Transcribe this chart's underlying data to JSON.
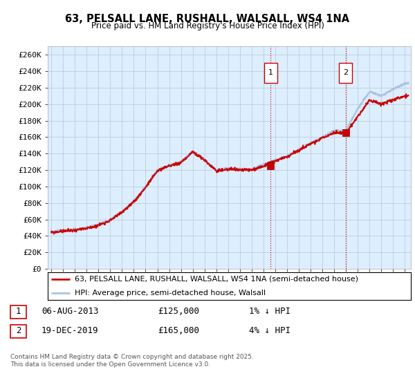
{
  "title": "63, PELSALL LANE, RUSHALL, WALSALL, WS4 1NA",
  "subtitle": "Price paid vs. HM Land Registry's House Price Index (HPI)",
  "ylim": [
    0,
    270000
  ],
  "yticks": [
    0,
    20000,
    40000,
    60000,
    80000,
    100000,
    120000,
    140000,
    160000,
    180000,
    200000,
    220000,
    240000,
    260000
  ],
  "ytick_labels": [
    "£0",
    "£20K",
    "£40K",
    "£60K",
    "£80K",
    "£100K",
    "£120K",
    "£140K",
    "£160K",
    "£180K",
    "£200K",
    "£220K",
    "£240K",
    "£260K"
  ],
  "hpi_color": "#aac4e0",
  "price_color": "#cc0000",
  "bg_color": "#ddeeff",
  "grid_color": "#bbccdd",
  "legend_label_price": "63, PELSALL LANE, RUSHALL, WALSALL, WS4 1NA (semi-detached house)",
  "legend_label_hpi": "HPI: Average price, semi-detached house, Walsall",
  "transaction1_label": "1",
  "transaction1_date": "06-AUG-2013",
  "transaction1_price": "£125,000",
  "transaction1_hpi": "1% ↓ HPI",
  "transaction2_label": "2",
  "transaction2_date": "19-DEC-2019",
  "transaction2_price": "£165,000",
  "transaction2_hpi": "4% ↓ HPI",
  "footer": "Contains HM Land Registry data © Crown copyright and database right 2025.\nThis data is licensed under the Open Government Licence v3.0.",
  "transaction1_x": 2013.6,
  "transaction1_y": 125000,
  "transaction2_x": 2019.97,
  "transaction2_y": 165000,
  "xmin": 1994.7,
  "xmax": 2025.5
}
